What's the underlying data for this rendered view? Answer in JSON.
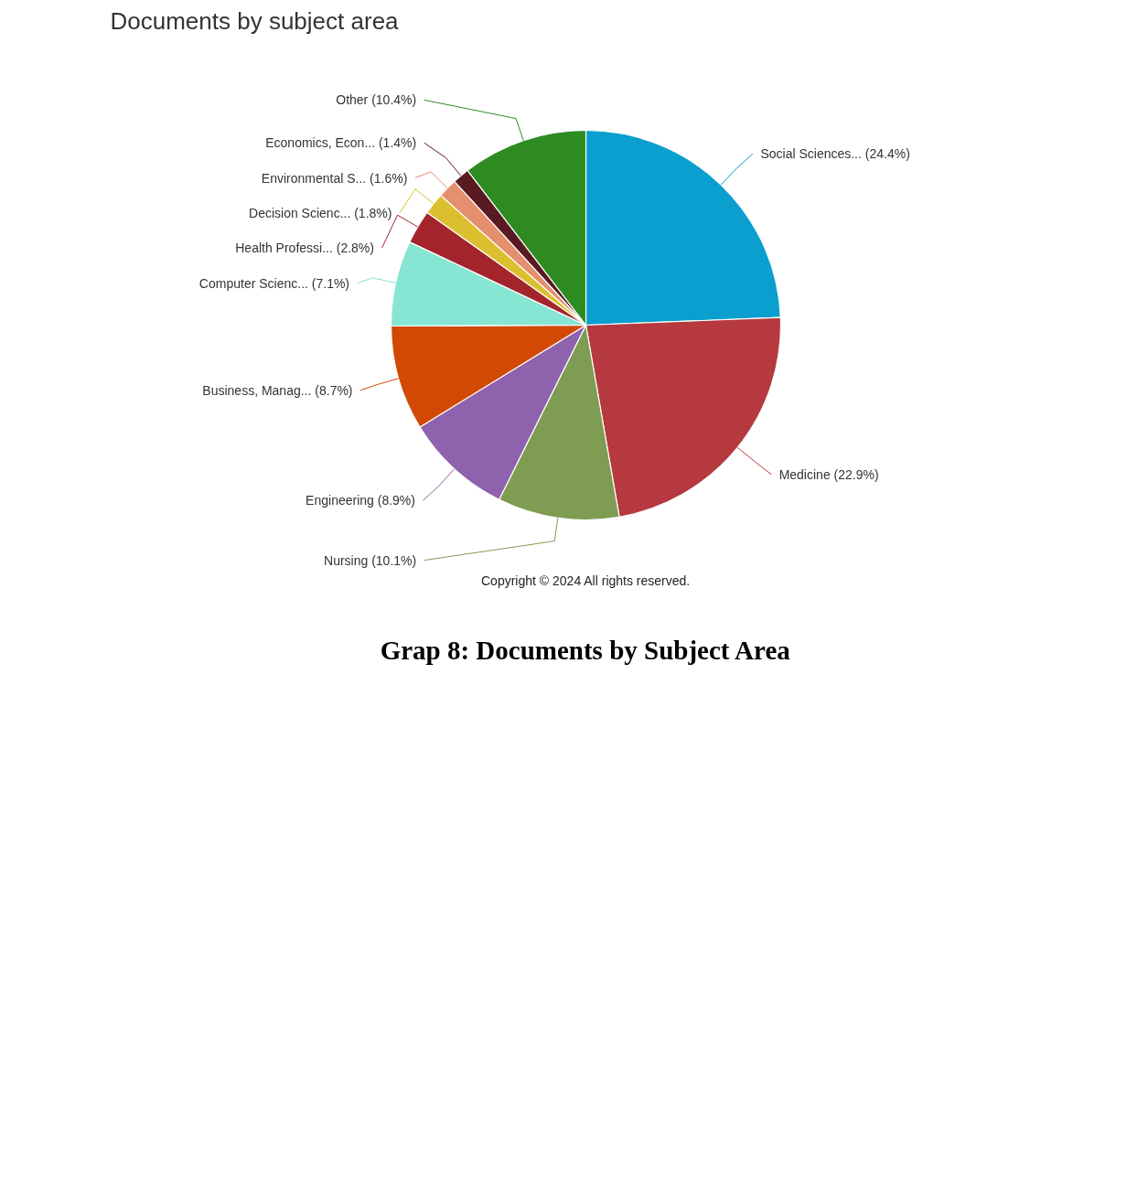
{
  "chart_data": {
    "type": "pie",
    "title": "Documents by subject area",
    "categories": [
      "Social Sciences... (24.4%)",
      "Medicine (22.9%)",
      "Nursing (10.1%)",
      "Engineering (8.9%)",
      "Business, Manag... (8.7%)",
      "Computer Scienc... (7.1%)",
      "Health Professi... (2.8%)",
      "Decision Scienc... (1.8%)",
      "Environmental S... (1.6%)",
      "Economics, Econ... (1.4%)",
      "Other (10.4%)"
    ],
    "values": [
      24.4,
      22.9,
      10.1,
      8.9,
      8.7,
      7.1,
      2.8,
      1.8,
      1.6,
      1.4,
      10.4
    ],
    "colors": [
      "#0a9fce",
      "#b5393e",
      "#7e9c52",
      "#8f62ad",
      "#d14905",
      "#87e6d3",
      "#a3252b",
      "#dcbf2f",
      "#e48f6d",
      "#5a1a22",
      "#2e8b22"
    ],
    "annotations": [
      "Copyright © 2024 All rights reserved.",
      "Grap 8: Documents by Subject Area"
    ]
  }
}
